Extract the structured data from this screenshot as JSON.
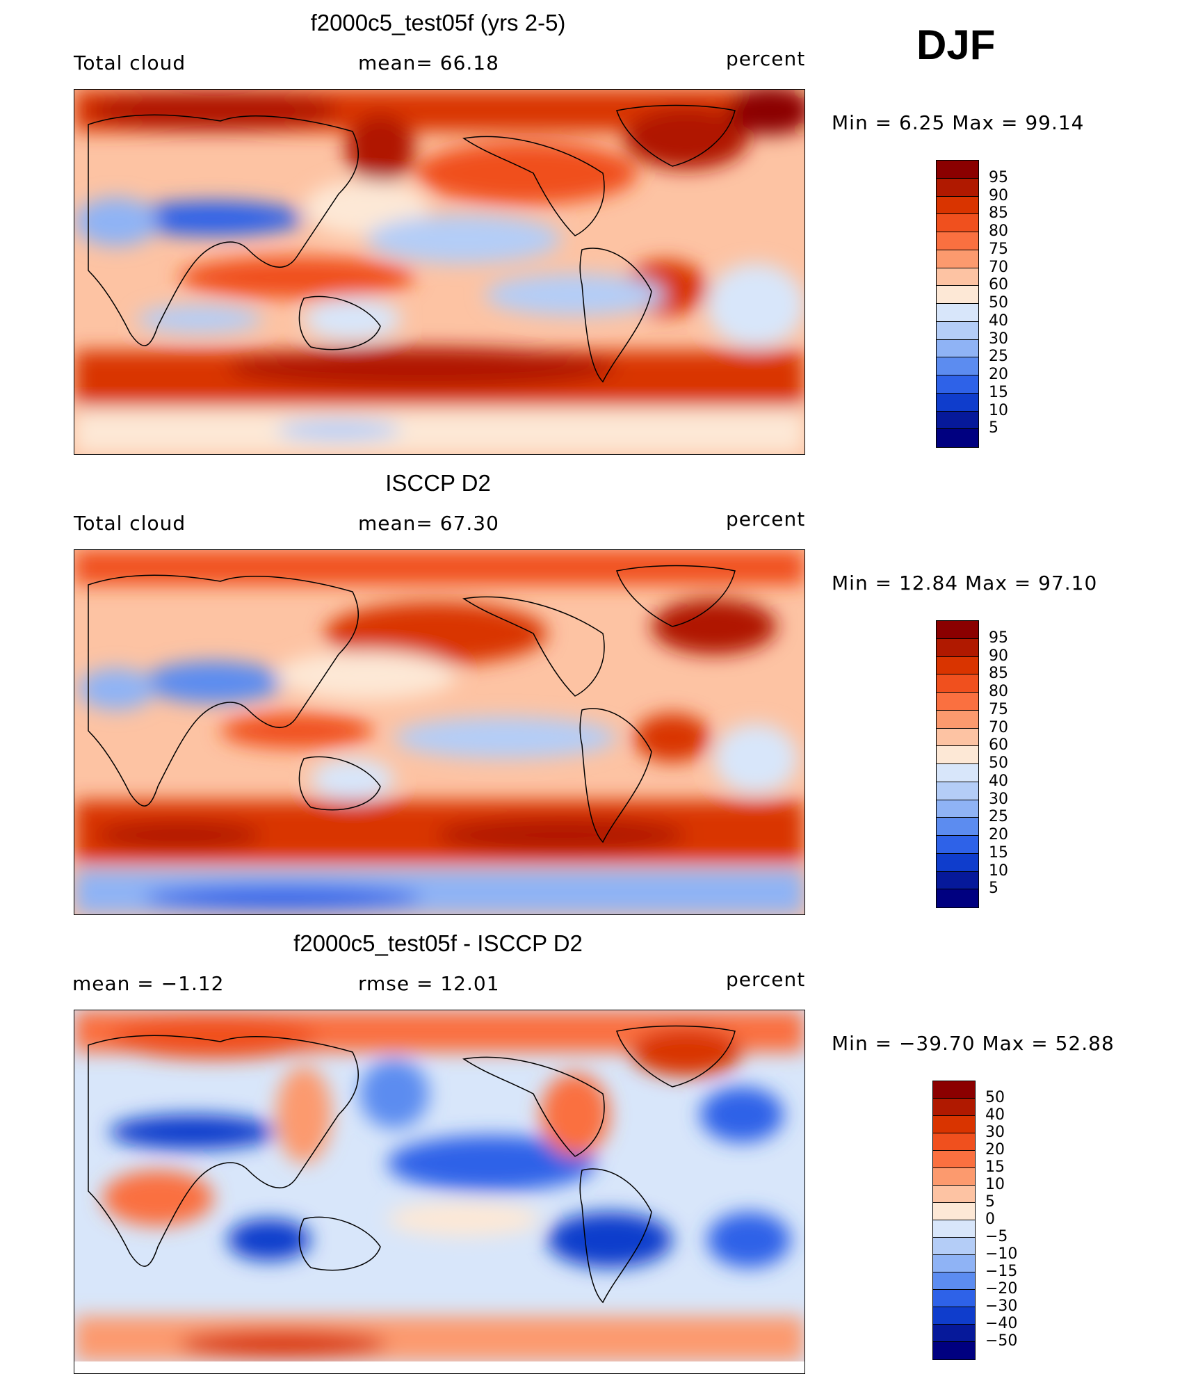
{
  "season": "DJF",
  "panels": [
    {
      "title": "f2000c5_test05f (yrs 2-5)",
      "left_label": "Total cloud",
      "center_label": "mean=   66.18",
      "units": "percent",
      "minmax": "Min  =    6.25  Max  =   99.14",
      "colorbar": {
        "labels": [
          "95",
          "90",
          "85",
          "80",
          "75",
          "70",
          "60",
          "50",
          "40",
          "30",
          "25",
          "20",
          "15",
          "10",
          "5"
        ],
        "colors": [
          "#8b0000",
          "#b01900",
          "#d93400",
          "#f0501e",
          "#fa7040",
          "#fc9a6e",
          "#fdc3a3",
          "#fde8d6",
          "#d8e6fa",
          "#b4cdf7",
          "#8fb3f5",
          "#5c8cf0",
          "#2e62e8",
          "#0f3dcc",
          "#06199a",
          "#000080"
        ]
      }
    },
    {
      "title": "ISCCP D2",
      "left_label": "Total cloud",
      "center_label": "mean=   67.30",
      "units": "percent",
      "minmax": "Min  =   12.84  Max  =   97.10",
      "colorbar": {
        "labels": [
          "95",
          "90",
          "85",
          "80",
          "75",
          "70",
          "60",
          "50",
          "40",
          "30",
          "25",
          "20",
          "15",
          "10",
          "5"
        ],
        "colors": [
          "#8b0000",
          "#b01900",
          "#d93400",
          "#f0501e",
          "#fa7040",
          "#fc9a6e",
          "#fdc3a3",
          "#fde8d6",
          "#d8e6fa",
          "#b4cdf7",
          "#8fb3f5",
          "#5c8cf0",
          "#2e62e8",
          "#0f3dcc",
          "#06199a",
          "#000080"
        ]
      }
    },
    {
      "title": "f2000c5_test05f - ISCCP D2",
      "left_label": "mean  =    −1.12",
      "center_label": "rmse  =    12.01",
      "units": "percent",
      "minmax": "Min  = −39.70  Max  =   52.88",
      "colorbar": {
        "labels": [
          "50",
          "40",
          "30",
          "20",
          "15",
          "10",
          "5",
          "0",
          "−5",
          "−10",
          "−15",
          "−20",
          "−30",
          "−40",
          "−50"
        ],
        "colors": [
          "#8b0000",
          "#b01900",
          "#d93400",
          "#f0501e",
          "#fa7040",
          "#fc9a6e",
          "#fdc3a3",
          "#fde8d6",
          "#d8e6fa",
          "#b4cdf7",
          "#8fb3f5",
          "#5c8cf0",
          "#2e62e8",
          "#0f3dcc",
          "#06199a",
          "#000080"
        ]
      }
    }
  ],
  "chart_data": [
    {
      "type": "heatmap",
      "title": "f2000c5_test05f (yrs 2-5)",
      "variable": "Total cloud",
      "units": "percent",
      "mean": 66.18,
      "min": 6.25,
      "max": 99.14,
      "contour_levels": [
        5,
        10,
        15,
        20,
        25,
        30,
        40,
        50,
        60,
        70,
        75,
        80,
        85,
        90,
        95
      ]
    },
    {
      "type": "heatmap",
      "title": "ISCCP D2",
      "variable": "Total cloud",
      "units": "percent",
      "mean": 67.3,
      "min": 12.84,
      "max": 97.1,
      "contour_levels": [
        5,
        10,
        15,
        20,
        25,
        30,
        40,
        50,
        60,
        70,
        75,
        80,
        85,
        90,
        95
      ]
    },
    {
      "type": "heatmap",
      "title": "f2000c5_test05f - ISCCP D2",
      "units": "percent",
      "mean": -1.12,
      "rmse": 12.01,
      "min": -39.7,
      "max": 52.88,
      "contour_levels": [
        -50,
        -40,
        -30,
        -20,
        -15,
        -10,
        -5,
        0,
        5,
        10,
        15,
        20,
        30,
        40,
        50
      ]
    }
  ]
}
